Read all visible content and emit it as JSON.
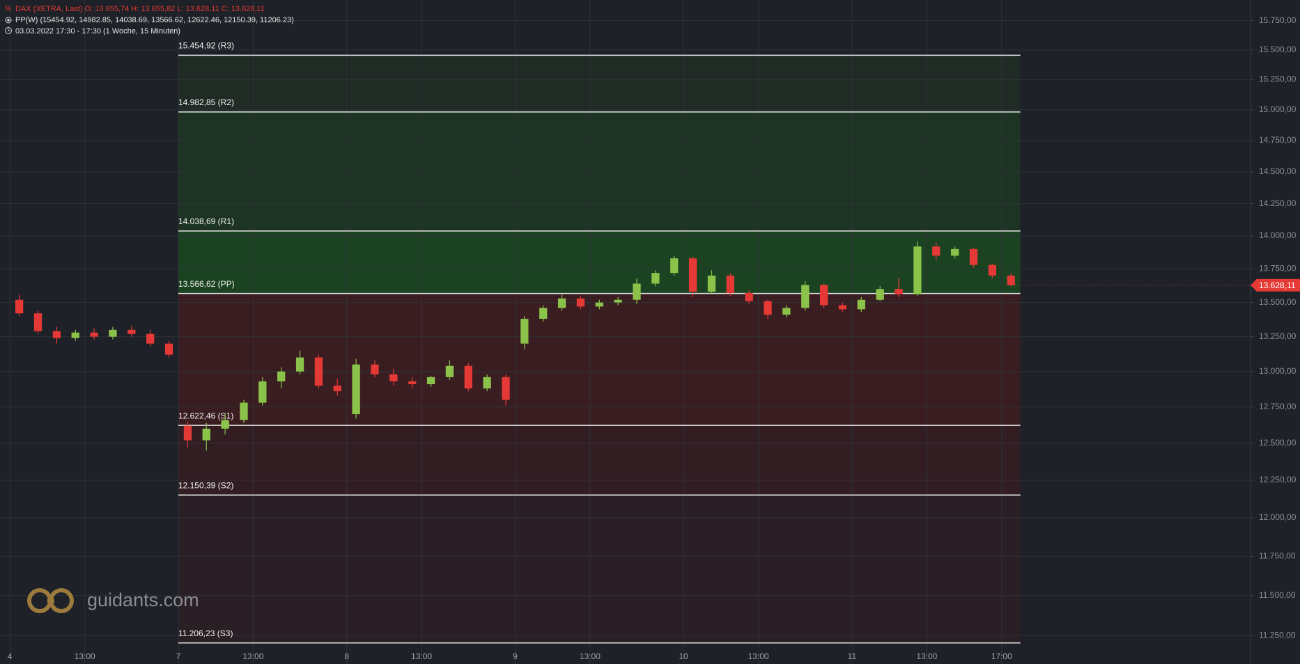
{
  "chart_data": {
    "type": "candlestick",
    "header": {
      "symbol": "DAX (XETRA, Last)  O: 13.655,74  H: 13.655,82  L: 13.628,11  C: 13.628,11",
      "indicator": "PP(W)  (15454.92, 14982.85, 14038.69, 13566.62, 12622.46, 12150.39, 11206.23)",
      "period": "03.03.2022 17:30 - 17:30   (1 Woche, 15 Minuten)"
    },
    "watermark": "guidants.com",
    "log_scale": true,
    "grid": true,
    "up_color": "#8bc34a",
    "down_color": "#e53935",
    "x": [
      0,
      1,
      2,
      3,
      4,
      5,
      6,
      7,
      8,
      9,
      10,
      11,
      12,
      13,
      14,
      15,
      16,
      17,
      18,
      19,
      20,
      21,
      22,
      23,
      24,
      25,
      26,
      27,
      28,
      29,
      30,
      31,
      32,
      33,
      34,
      35,
      36,
      37,
      38,
      39,
      40,
      41,
      42,
      43,
      44,
      45,
      46,
      47,
      48,
      49,
      50,
      51,
      52,
      53
    ],
    "open": [
      13520,
      13420,
      13290,
      13240,
      13280,
      13250,
      13300,
      13270,
      13200,
      12620,
      12520,
      12600,
      12660,
      12780,
      12930,
      13000,
      13100,
      12900,
      12700,
      13050,
      12980,
      12930,
      12910,
      12960,
      13040,
      12880,
      12960,
      13200,
      13380,
      13460,
      13530,
      13470,
      13500,
      13520,
      13640,
      13720,
      13830,
      13580,
      13700,
      13570,
      13510,
      13410,
      13460,
      13630,
      13480,
      13450,
      13520,
      13600,
      13560,
      13920,
      13850,
      13900,
      13780,
      13700
    ],
    "high": [
      13560,
      13440,
      13320,
      13300,
      13310,
      13320,
      13330,
      13300,
      13220,
      12650,
      12640,
      12700,
      12800,
      12960,
      13030,
      13150,
      13120,
      12950,
      13090,
      13080,
      13020,
      12960,
      12970,
      13080,
      13060,
      12980,
      12980,
      13400,
      13480,
      13560,
      13550,
      13520,
      13540,
      13680,
      13740,
      13850,
      13840,
      13740,
      13720,
      13590,
      13520,
      13480,
      13660,
      13640,
      13500,
      13540,
      13620,
      13680,
      13960,
      13950,
      13920,
      13910,
      13790,
      13720
    ],
    "low": [
      13400,
      13270,
      13200,
      13220,
      13230,
      13230,
      13250,
      13180,
      13100,
      12470,
      12450,
      12560,
      12640,
      12760,
      12880,
      12980,
      12880,
      12830,
      12670,
      12960,
      12900,
      12880,
      12890,
      12940,
      12860,
      12860,
      12760,
      13160,
      13360,
      13440,
      13450,
      13450,
      13480,
      13490,
      13620,
      13700,
      13540,
      13560,
      13550,
      13490,
      13380,
      13390,
      13440,
      13460,
      13430,
      13430,
      13510,
      13540,
      13550,
      13820,
      13830,
      13760,
      13680,
      13620
    ],
    "close": [
      13420,
      13290,
      13240,
      13280,
      13250,
      13300,
      13270,
      13200,
      13120,
      12520,
      12600,
      12660,
      12780,
      12930,
      13000,
      13100,
      12900,
      12860,
      13050,
      12980,
      12930,
      12910,
      12960,
      13040,
      12880,
      12960,
      12800,
      13380,
      13460,
      13530,
      13470,
      13500,
      13520,
      13640,
      13720,
      13830,
      13580,
      13700,
      13570,
      13510,
      13410,
      13460,
      13630,
      13480,
      13450,
      13520,
      13600,
      13560,
      13920,
      13850,
      13900,
      13780,
      13700,
      13628.11
    ],
    "xlim": [
      -0.53,
      66.3
    ],
    "xticks": [
      {
        "value": 0,
        "label": "4"
      },
      {
        "value": 4,
        "label": "13:00"
      },
      {
        "value": 9,
        "label": "7"
      },
      {
        "value": 13,
        "label": "13:00"
      },
      {
        "value": 18,
        "label": "8"
      },
      {
        "value": 22,
        "label": "13:00"
      },
      {
        "value": 27,
        "label": "9"
      },
      {
        "value": 31,
        "label": "13:00"
      },
      {
        "value": 36,
        "label": "10"
      },
      {
        "value": 40,
        "label": "13:00"
      },
      {
        "value": 45,
        "label": "11"
      },
      {
        "value": 49,
        "label": "13:00"
      },
      {
        "value": 53,
        "label": "17:00"
      }
    ],
    "ylim": [
      11078,
      15929
    ],
    "yticks": [
      {
        "value": 11250,
        "label": "11.250,00"
      },
      {
        "value": 11500,
        "label": "11.500,00"
      },
      {
        "value": 11750,
        "label": "11.750,00"
      },
      {
        "value": 12000,
        "label": "12.000,00"
      },
      {
        "value": 12250,
        "label": "12.250,00"
      },
      {
        "value": 12500,
        "label": "12.500,00"
      },
      {
        "value": 12750,
        "label": "12.750,00"
      },
      {
        "value": 13000,
        "label": "13.000,00"
      },
      {
        "value": 13250,
        "label": "13.250,00"
      },
      {
        "value": 13500,
        "label": "13.500,00"
      },
      {
        "value": 13750,
        "label": "13.750,00"
      },
      {
        "value": 14000,
        "label": "14.000,00"
      },
      {
        "value": 14250,
        "label": "14.250,00"
      },
      {
        "value": 14500,
        "label": "14.500,00"
      },
      {
        "value": 14750,
        "label": "14.750,00"
      },
      {
        "value": 15000,
        "label": "15.000,00"
      },
      {
        "value": 15250,
        "label": "15.250,00"
      },
      {
        "value": 15500,
        "label": "15.500,00"
      },
      {
        "value": 15750,
        "label": "15.750,00"
      }
    ],
    "levels": [
      {
        "value": 15454.92,
        "label": "15.454,92 (R3)"
      },
      {
        "value": 14982.85,
        "label": "14.982,85 (R2)"
      },
      {
        "value": 14038.69,
        "label": "14.038,69 (R1)"
      },
      {
        "value": 13566.62,
        "label": "13.566,62 (PP)"
      },
      {
        "value": 12622.46,
        "label": "12.622,46 (S1)"
      },
      {
        "value": 12150.39,
        "label": "12.150,39 (S2)"
      },
      {
        "value": 11206.23,
        "label": "11.206,23 (S3)"
      }
    ],
    "zone_colors": [
      "#1f2b24",
      "#1d3424",
      "#1b4322",
      "#3a1d21",
      "#321e22",
      "#2a1f24"
    ],
    "last_price": {
      "value": 13628.11,
      "label": "13.628,11"
    },
    "last_price_color": "#e53935"
  }
}
